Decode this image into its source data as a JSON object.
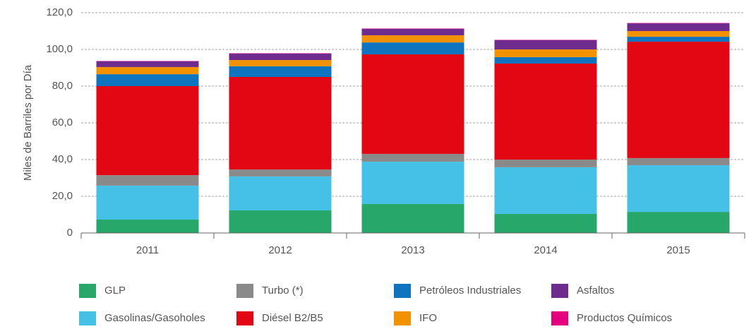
{
  "chart_data": {
    "type": "stacked_bar",
    "y_label": "Miles de Barriles por Día",
    "categories": [
      "2011",
      "2012",
      "2013",
      "2014",
      "2015"
    ],
    "series": [
      {
        "name": "GLP",
        "color": "#27a76a",
        "values": [
          7.3,
          12.3,
          15.8,
          10.4,
          11.5
        ]
      },
      {
        "name": "Gasolinas/Gasoholes",
        "color": "#45c0e6",
        "values": [
          18.5,
          18.5,
          23.0,
          25.4,
          25.4
        ]
      },
      {
        "name": "Turbo (*)",
        "color": "#8a8a8a",
        "values": [
          5.7,
          3.8,
          4.3,
          4.2,
          3.9
        ]
      },
      {
        "name": "Diésel B2/B5",
        "color": "#e30613",
        "values": [
          48.5,
          50.4,
          54.2,
          52.3,
          63.4
        ]
      },
      {
        "name": "Petróleos Industriales",
        "color": "#0f74bf",
        "values": [
          6.5,
          5.8,
          6.5,
          3.5,
          2.7
        ]
      },
      {
        "name": "IFO",
        "color": "#f39200",
        "values": [
          3.9,
          3.4,
          3.9,
          4.2,
          3.1
        ]
      },
      {
        "name": "Asfaltos",
        "color": "#6e2c8e",
        "values": [
          3.1,
          3.5,
          3.5,
          5.0,
          4.2
        ]
      },
      {
        "name": "Productos Químicos",
        "color": "#e5007e",
        "values": [
          0.2,
          0.2,
          0.2,
          0.2,
          0.2
        ]
      }
    ],
    "ylim": [
      0,
      120
    ],
    "yticks": [
      0,
      {
        "value": 20,
        "label": "20,0"
      },
      {
        "value": 40,
        "label": "40,0"
      },
      {
        "value": 60,
        "label": "60,0"
      },
      {
        "value": 80,
        "label": "80,0"
      },
      {
        "value": 100,
        "label": "100,0"
      },
      {
        "value": 120,
        "label": "120,0"
      }
    ],
    "grid": true
  }
}
